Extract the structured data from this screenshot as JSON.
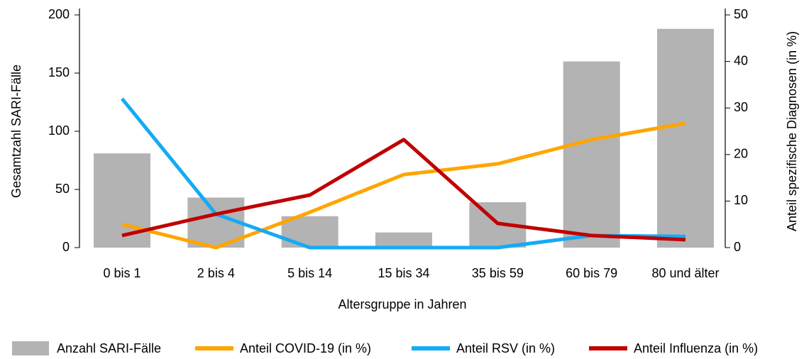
{
  "chart_data": {
    "type": "combo",
    "x_label": "Altersgruppe in Jahren",
    "y_label": "Gesamtzahl SARI-Fälle",
    "y2_label": "Anteil spezifische Diagnosen (in %)",
    "categories": [
      "0 bis 1",
      "2 bis 4",
      "5 bis 14",
      "15 bis 34",
      "35 bis 59",
      "60 bis 79",
      "80 und älter"
    ],
    "series": [
      {
        "name": "Anzahl SARI-Fälle",
        "type": "bar",
        "color": "#b3b3b3",
        "values": [
          81,
          43,
          27,
          13,
          39,
          160,
          188
        ]
      },
      {
        "name": "Anteil COVID-19 (in %)",
        "type": "line",
        "axis": "y2",
        "color": "#ffa500",
        "values": [
          5,
          0,
          7.6,
          15.7,
          18,
          23.2,
          26.7
        ]
      },
      {
        "name": "Anteil RSV (in %)",
        "type": "line",
        "axis": "y2",
        "color": "#14aaf5",
        "values": [
          32,
          7.2,
          0,
          0,
          0,
          2.6,
          2.4
        ]
      },
      {
        "name": "Anteil Influenza (in %)",
        "type": "line",
        "axis": "y2",
        "color": "#c00000",
        "values": [
          2.6,
          7.2,
          11.3,
          23.2,
          5.2,
          2.6,
          1.7
        ]
      }
    ],
    "ylim": [
      0,
      200
    ],
    "yticks": [
      0,
      50,
      100,
      150,
      200
    ],
    "y2lim": [
      0,
      50
    ],
    "y2ticks": [
      0,
      10,
      20,
      30,
      40,
      50
    ]
  }
}
